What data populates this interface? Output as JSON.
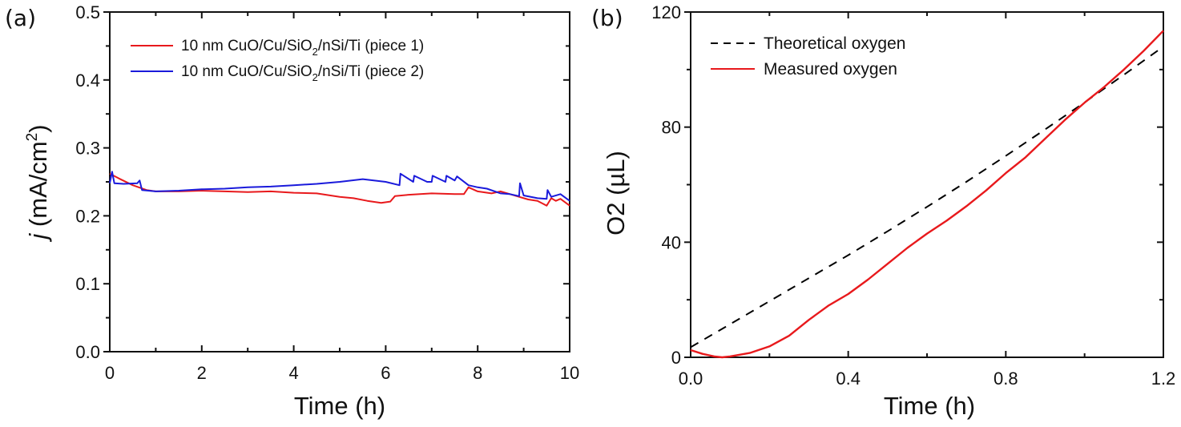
{
  "chart_data": [
    {
      "panel": "(a)",
      "type": "line",
      "title": "",
      "xlabel": "Time (h)",
      "ylabel_italic": "j",
      "ylabel_rest": " (mA/cm",
      "ylabel_sup": "2",
      "ylabel_close": ")",
      "xlim": [
        0,
        10
      ],
      "ylim": [
        0.0,
        0.5
      ],
      "xticks": [
        "0",
        "2",
        "4",
        "6",
        "8",
        "10"
      ],
      "yticks": [
        "0.0",
        "0.1",
        "0.2",
        "0.3",
        "0.4",
        "0.5"
      ],
      "grid": false,
      "legend_position": "top-left",
      "series": [
        {
          "name": "10 nm CuO/Cu/SiO2/nSi/Ti (piece 1)",
          "legend_pre": "10 nm CuO/Cu/SiO",
          "legend_sub": "2",
          "legend_post": "/nSi/Ti (piece 1)",
          "color": "#e8191c",
          "x": [
            0,
            0.2,
            0.5,
            0.8,
            1.0,
            1.5,
            2.0,
            2.5,
            3.0,
            3.5,
            4.0,
            4.5,
            5.0,
            5.3,
            5.6,
            5.9,
            6.1,
            6.2,
            6.5,
            7.0,
            7.5,
            7.7,
            7.8,
            8.0,
            8.3,
            8.5,
            8.7,
            8.9,
            9.1,
            9.3,
            9.5,
            9.6,
            9.7,
            9.8,
            10.0
          ],
          "y": [
            0.262,
            0.255,
            0.245,
            0.238,
            0.236,
            0.236,
            0.237,
            0.236,
            0.235,
            0.236,
            0.234,
            0.233,
            0.228,
            0.226,
            0.222,
            0.219,
            0.221,
            0.229,
            0.231,
            0.233,
            0.232,
            0.232,
            0.242,
            0.236,
            0.233,
            0.236,
            0.232,
            0.228,
            0.224,
            0.222,
            0.215,
            0.226,
            0.222,
            0.225,
            0.215
          ]
        },
        {
          "name": "10 nm CuO/Cu/SiO2/nSi/Ti (piece 2)",
          "legend_pre": "10 nm CuO/Cu/SiO",
          "legend_sub": "2",
          "legend_post": "/nSi/Ti (piece 2)",
          "color": "#1a1adb",
          "x": [
            0,
            0.05,
            0.1,
            0.3,
            0.6,
            0.65,
            0.7,
            1.0,
            1.5,
            2.0,
            2.5,
            3.0,
            3.5,
            4.0,
            4.5,
            5.0,
            5.5,
            6.0,
            6.3,
            6.32,
            6.6,
            6.62,
            6.9,
            7.0,
            7.02,
            7.3,
            7.32,
            7.5,
            7.55,
            7.8,
            8.0,
            8.2,
            8.5,
            8.7,
            8.9,
            8.92,
            9.0,
            9.3,
            9.5,
            9.52,
            9.6,
            9.8,
            10.0
          ],
          "y": [
            0.248,
            0.265,
            0.248,
            0.247,
            0.248,
            0.252,
            0.238,
            0.236,
            0.237,
            0.239,
            0.24,
            0.242,
            0.243,
            0.245,
            0.247,
            0.25,
            0.254,
            0.25,
            0.245,
            0.262,
            0.25,
            0.259,
            0.25,
            0.25,
            0.259,
            0.25,
            0.259,
            0.252,
            0.258,
            0.245,
            0.242,
            0.24,
            0.233,
            0.232,
            0.229,
            0.248,
            0.23,
            0.226,
            0.225,
            0.238,
            0.228,
            0.232,
            0.222
          ]
        }
      ]
    },
    {
      "panel": "(b)",
      "type": "line",
      "title": "",
      "xlabel": "Time (h)",
      "ylabel": "O2 (µL)",
      "xlim": [
        0.0,
        1.2
      ],
      "ylim": [
        0,
        120
      ],
      "xticks": [
        "0.0",
        "0.4",
        "0.8",
        "1.2"
      ],
      "yticks": [
        "0",
        "40",
        "80",
        "120"
      ],
      "grid": false,
      "legend_position": "top-left",
      "series": [
        {
          "name": "Theoretical oxygen",
          "style": "dashed",
          "color": "#000000",
          "x": [
            0.0,
            0.1,
            0.2,
            0.3,
            0.4,
            0.5,
            0.6,
            0.7,
            0.8,
            0.9,
            1.0,
            1.1,
            1.2
          ],
          "y": [
            3.5,
            11.5,
            19.5,
            27.5,
            35.5,
            43.8,
            52.3,
            61.0,
            70.0,
            79.2,
            88.6,
            98.2,
            108.0
          ]
        },
        {
          "name": "Measured oxygen",
          "style": "solid",
          "color": "#e8191c",
          "x": [
            0.0,
            0.03,
            0.06,
            0.08,
            0.1,
            0.15,
            0.2,
            0.25,
            0.3,
            0.35,
            0.4,
            0.45,
            0.5,
            0.55,
            0.6,
            0.65,
            0.7,
            0.75,
            0.8,
            0.85,
            0.9,
            0.95,
            1.0,
            1.05,
            1.1,
            1.15,
            1.2
          ],
          "y": [
            2.5,
            1.2,
            0.3,
            0.0,
            0.3,
            1.5,
            3.8,
            7.5,
            13.0,
            18.0,
            22.0,
            27.0,
            32.5,
            38.0,
            43.0,
            47.5,
            52.5,
            58.0,
            64.0,
            69.5,
            76.0,
            82.5,
            88.5,
            94.0,
            100.0,
            106.5,
            113.5
          ]
        }
      ]
    }
  ]
}
